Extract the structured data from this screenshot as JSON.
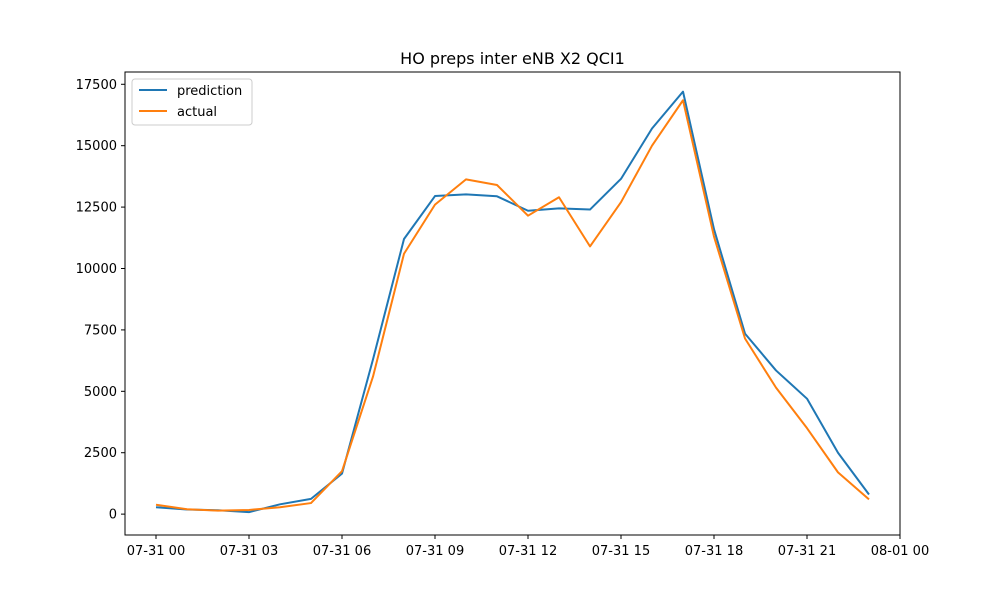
{
  "chart_data": {
    "type": "line",
    "title": "HO preps inter eNB X2 QCI1",
    "xlabel": "",
    "ylabel": "",
    "x": [
      "07-31 00:00",
      "07-31 01:00",
      "07-31 02:00",
      "07-31 03:00",
      "07-31 04:00",
      "07-31 05:00",
      "07-31 06:00",
      "07-31 07:00",
      "07-31 08:00",
      "07-31 09:00",
      "07-31 10:00",
      "07-31 11:00",
      "07-31 12:00",
      "07-31 13:00",
      "07-31 14:00",
      "07-31 15:00",
      "07-31 16:00",
      "07-31 17:00",
      "07-31 18:00",
      "07-31 19:00",
      "07-31 20:00",
      "07-31 21:00",
      "07-31 22:00",
      "07-31 23:00"
    ],
    "series": [
      {
        "name": "prediction",
        "color": "#1f77b4",
        "values": [
          280,
          190,
          160,
          80,
          400,
          620,
          1650,
          6300,
          11200,
          12950,
          13020,
          12940,
          12350,
          12450,
          12400,
          13650,
          15700,
          17200,
          11600,
          7350,
          5850,
          4700,
          2500,
          800
        ]
      },
      {
        "name": "actual",
        "color": "#ff7f0e",
        "values": [
          380,
          200,
          140,
          170,
          280,
          450,
          1750,
          5600,
          10600,
          12600,
          13630,
          13400,
          12150,
          12900,
          10900,
          12700,
          15000,
          16850,
          11300,
          7150,
          5150,
          3500,
          1700,
          600
        ]
      }
    ],
    "xlim": [
      "07-30 23:00",
      "08-01 00:00"
    ],
    "ylim": [
      -850,
      18000
    ],
    "xticks": {
      "labels": [
        "07-31 00",
        "07-31 03",
        "07-31 06",
        "07-31 09",
        "07-31 12",
        "07-31 15",
        "07-31 18",
        "07-31 21",
        "08-01 00"
      ],
      "hours": [
        0,
        3,
        6,
        9,
        12,
        15,
        18,
        21,
        24
      ]
    },
    "yticks": {
      "labels": [
        "0",
        "2500",
        "5000",
        "7500",
        "10000",
        "12500",
        "15000",
        "17500"
      ],
      "values": [
        0,
        2500,
        5000,
        7500,
        10000,
        12500,
        15000,
        17500
      ]
    },
    "grid": false,
    "legend_position": "top-left"
  }
}
